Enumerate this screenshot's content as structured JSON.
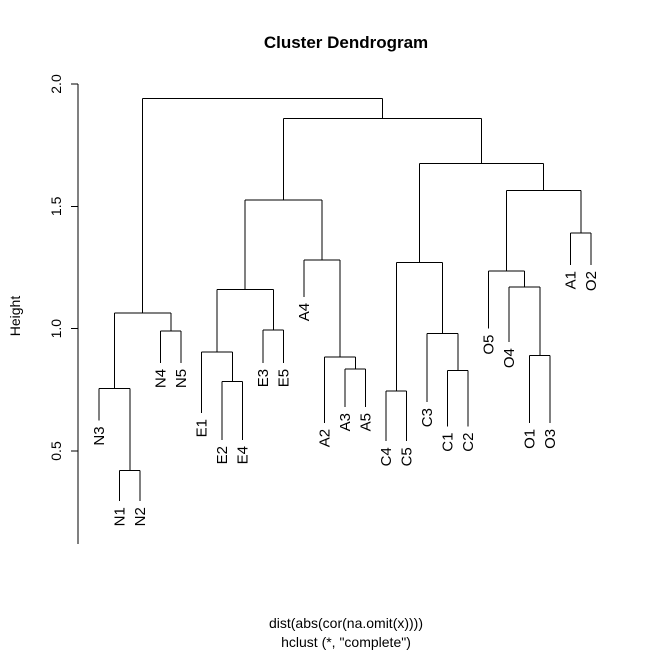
{
  "chart_data": {
    "type": "dendrogram",
    "title": "Cluster Dendrogram",
    "ylabel": "Height",
    "xlabel_line1": "dist(abs(cor(na.omit(x))))",
    "xlabel_line2": "hclust (*, \"complete\")",
    "ylim": [
      0.12,
      2.0
    ],
    "yticks": [
      0.5,
      1.0,
      1.5,
      2.0
    ],
    "ytick_labels": [
      "0.5",
      "1.0",
      "1.5",
      "2.0"
    ],
    "leaves": [
      "N3",
      "N1",
      "N2",
      "N4",
      "N5",
      "E1",
      "E2",
      "E4",
      "E3",
      "E5",
      "A4",
      "A2",
      "A3",
      "A5",
      "C4",
      "C5",
      "C3",
      "C1",
      "C2",
      "O5",
      "O4",
      "O1",
      "O3",
      "A1",
      "O2"
    ],
    "leaf_heights": {
      "N3": 0.625,
      "N1": 0.295,
      "N2": 0.295,
      "N4": 0.86,
      "N5": 0.86,
      "E1": 0.655,
      "E2": 0.545,
      "E4": 0.545,
      "E3": 0.86,
      "E5": 0.86,
      "A4": 1.13,
      "A2": 0.615,
      "A3": 0.68,
      "A5": 0.68,
      "C4": 0.54,
      "C5": 0.54,
      "C3": 0.7,
      "C1": 0.6,
      "C2": 0.6,
      "O5": 1.0,
      "O4": 0.945,
      "O1": 0.615,
      "O3": 0.615,
      "A1": 1.26,
      "O2": 1.26
    },
    "merges": [
      [
        "N1",
        "N2",
        0.42
      ],
      [
        "N3",
        0,
        0.755
      ],
      [
        "N4",
        "N5",
        0.99
      ],
      [
        1,
        2,
        1.065
      ],
      [
        "E2",
        "E4",
        0.785
      ],
      [
        "E1",
        4,
        0.905
      ],
      [
        "E3",
        "E5",
        0.995
      ],
      [
        5,
        6,
        1.16
      ],
      [
        "A3",
        "A5",
        0.835
      ],
      [
        "A2",
        8,
        0.885
      ],
      [
        "A4",
        9,
        1.28
      ],
      [
        7,
        10,
        1.525
      ],
      [
        "C4",
        "C5",
        0.745
      ],
      [
        "C1",
        "C2",
        0.83
      ],
      [
        "C3",
        13,
        0.98
      ],
      [
        12,
        14,
        1.27
      ],
      [
        "O1",
        "O3",
        0.89
      ],
      [
        "O4",
        16,
        1.17
      ],
      [
        "O5",
        17,
        1.235
      ],
      [
        "A1",
        "O2",
        1.39
      ],
      [
        18,
        19,
        1.565
      ],
      [
        15,
        20,
        1.675
      ],
      [
        11,
        21,
        1.86
      ],
      [
        3,
        22,
        1.94
      ]
    ]
  }
}
